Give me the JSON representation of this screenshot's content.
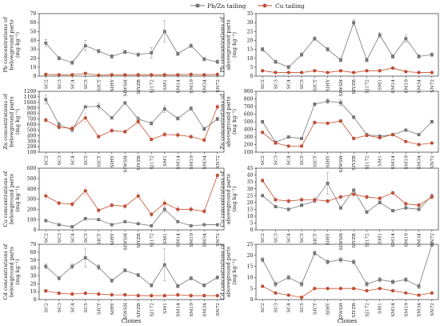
{
  "legend": {
    "series_a": "Pb/Zn tailing",
    "series_b": "Cu tailing",
    "series_a_color": "#7a7a7a",
    "series_b_color": "#c9502f",
    "error_a_color": "#9a9a9a",
    "error_b_color": "#f0b8d6"
  },
  "x_axis_title": "Clones",
  "chart_data": [
    {
      "type": "line",
      "ylabel_lines": [
        "Pb concentrations of",
        "belowground parts",
        "(mg kg⁻¹)"
      ],
      "ylim": [
        0,
        70
      ],
      "yticks": [
        0,
        10,
        20,
        30,
        40,
        50,
        60,
        70
      ],
      "categories": [
        "SC2",
        "SC3",
        "SC4",
        "SC5",
        "SICT",
        "SIHY",
        "SIWSH",
        "SIYZB",
        "SJ172",
        "SM1",
        "SM14",
        "SM19",
        "SM34",
        "SN72"
      ],
      "series": [
        {
          "name": "Pb/Zn tailing",
          "values": [
            37,
            20,
            15,
            34,
            28,
            22,
            27,
            24,
            26,
            50,
            25,
            34,
            19,
            16
          ],
          "errors": [
            4,
            2,
            2,
            6,
            2,
            2,
            2,
            2,
            6,
            12,
            2,
            2,
            2,
            2
          ]
        },
        {
          "name": "Cu tailing",
          "values": [
            2,
            1.5,
            1.5,
            3,
            1,
            1.5,
            1.5,
            1.5,
            1.5,
            1.5,
            1.5,
            2,
            1.5,
            2
          ],
          "errors": [
            0.5,
            0.5,
            0.5,
            1,
            0.5,
            0.5,
            0.5,
            0.5,
            0.5,
            0.5,
            0.5,
            0.5,
            0.5,
            0.5
          ]
        }
      ]
    },
    {
      "type": "line",
      "ylabel_lines": [
        "Pb concentrations of",
        "aboveground parts",
        "(mg kg⁻¹)"
      ],
      "ylim": [
        0,
        35
      ],
      "yticks": [
        0,
        5,
        10,
        15,
        20,
        25,
        30,
        35
      ],
      "categories": [
        "SC2",
        "SC3",
        "SC4",
        "SC5",
        "SICT",
        "SIHY",
        "SIWSH",
        "SIYZB",
        "SJ172",
        "SM1",
        "SM14",
        "SM19",
        "SM34",
        "SN72"
      ],
      "series": [
        {
          "name": "Pb/Zn tailing",
          "values": [
            15,
            8,
            5,
            12,
            21,
            15,
            9,
            30,
            9,
            23,
            11,
            21,
            11,
            12
          ],
          "errors": [
            1,
            1,
            1,
            1,
            1,
            1,
            1,
            1.5,
            1,
            1.5,
            1,
            2,
            1,
            1
          ]
        },
        {
          "name": "Cu tailing",
          "values": [
            3,
            2,
            2,
            2,
            3,
            2,
            3,
            2,
            3,
            3,
            4.5,
            2.5,
            2,
            2
          ],
          "errors": [
            0.5,
            0.5,
            0.5,
            0.5,
            0.5,
            0.5,
            0.5,
            0.5,
            0.5,
            0.5,
            0.5,
            0.5,
            0.5,
            0.5
          ]
        }
      ]
    },
    {
      "type": "line",
      "ylabel_lines": [
        "Zn concentrations of",
        "belowground parts",
        "(mg kg⁻¹)"
      ],
      "ylim": [
        100,
        1200
      ],
      "yticks": [
        100,
        200,
        300,
        400,
        500,
        600,
        700,
        800,
        900,
        1000,
        1100,
        1200
      ],
      "categories": [
        "SC2",
        "SC3",
        "SC4",
        "SC5",
        "SICT",
        "SIHY",
        "SIWSH",
        "SIYZB",
        "SJ172",
        "SM1",
        "SM14",
        "SM19",
        "SM34",
        "SN72"
      ],
      "series": [
        {
          "name": "Pb/Zn tailing",
          "values": [
            1050,
            600,
            500,
            920,
            930,
            720,
            990,
            700,
            620,
            880,
            710,
            890,
            520,
            700
          ],
          "errors": [
            80,
            40,
            30,
            20,
            60,
            20,
            20,
            40,
            30,
            60,
            30,
            30,
            30,
            30
          ]
        },
        {
          "name": "Cu tailing",
          "values": [
            680,
            550,
            530,
            720,
            380,
            490,
            470,
            650,
            330,
            420,
            410,
            380,
            320,
            920
          ],
          "errors": [
            40,
            30,
            40,
            80,
            40,
            40,
            30,
            50,
            30,
            40,
            40,
            30,
            30,
            40
          ]
        }
      ]
    },
    {
      "type": "line",
      "ylabel_lines": [
        "Zn concentrations of",
        "aboveground parts",
        "(mg kg⁻¹)"
      ],
      "ylim": [
        100,
        900
      ],
      "yticks": [
        100,
        200,
        300,
        400,
        500,
        600,
        700,
        800,
        900
      ],
      "categories": [
        "SC2",
        "SC3",
        "SC4",
        "SC5",
        "SICT",
        "SIHY",
        "SIWSH",
        "SIYZB",
        "SJ172",
        "SM1",
        "SM14",
        "SM19",
        "SM34",
        "SN72"
      ],
      "series": [
        {
          "name": "Pb/Zn tailing",
          "values": [
            500,
            230,
            300,
            280,
            730,
            770,
            750,
            560,
            330,
            310,
            330,
            390,
            330,
            500
          ],
          "errors": [
            20,
            15,
            15,
            15,
            20,
            30,
            40,
            20,
            15,
            15,
            15,
            15,
            15,
            20
          ]
        },
        {
          "name": "Cu tailing",
          "values": [
            360,
            220,
            180,
            180,
            490,
            480,
            510,
            280,
            320,
            290,
            330,
            240,
            200,
            220
          ],
          "errors": [
            20,
            15,
            15,
            15,
            20,
            20,
            20,
            20,
            15,
            15,
            15,
            15,
            15,
            15
          ]
        }
      ]
    },
    {
      "type": "line",
      "ylabel_lines": [
        "Cu concentrations of",
        "belowground parts",
        "(mg kg⁻¹)"
      ],
      "ylim": [
        0,
        600
      ],
      "yticks": [
        0,
        100,
        200,
        300,
        400,
        500,
        600
      ],
      "categories": [
        "SC2",
        "SC3",
        "SC4",
        "SC5",
        "SICT",
        "SIHY",
        "SIWSH",
        "SIYZB",
        "SJ172",
        "SM1",
        "SM14",
        "SM19",
        "SM34",
        "SN72"
      ],
      "series": [
        {
          "name": "Pb/Zn tailing",
          "values": [
            90,
            50,
            30,
            110,
            100,
            50,
            80,
            60,
            40,
            200,
            80,
            40,
            50,
            50
          ],
          "errors": [
            10,
            5,
            5,
            10,
            10,
            5,
            8,
            5,
            5,
            30,
            8,
            5,
            5,
            5
          ]
        },
        {
          "name": "Cu tailing",
          "values": [
            330,
            260,
            250,
            380,
            190,
            240,
            230,
            330,
            150,
            260,
            200,
            200,
            180,
            530
          ],
          "errors": [
            30,
            20,
            20,
            40,
            20,
            20,
            20,
            30,
            20,
            30,
            30,
            20,
            20,
            20
          ]
        }
      ]
    },
    {
      "type": "line",
      "ylabel_lines": [
        "Cu concentrations of",
        "aboveground parts",
        "(mg kg⁻¹)"
      ],
      "ylim": [
        0,
        45
      ],
      "yticks": [
        0,
        5,
        10,
        15,
        20,
        25,
        30,
        35,
        40,
        45
      ],
      "categories": [
        "SC2",
        "SC3",
        "SC4",
        "SC5",
        "SICT",
        "SIHY",
        "SIWSH",
        "SIYZB",
        "SJ172",
        "SM1",
        "SM14",
        "SM19",
        "SM34",
        "SN72"
      ],
      "series": [
        {
          "name": "Pb/Zn tailing",
          "values": [
            25,
            17,
            15,
            18,
            21,
            34,
            16,
            29,
            13,
            20,
            14,
            16,
            15,
            25
          ],
          "errors": [
            1,
            1,
            1,
            1,
            1,
            8,
            1,
            1,
            1,
            1,
            1,
            1,
            1,
            1
          ]
        },
        {
          "name": "Cu tailing",
          "values": [
            36,
            22,
            21,
            22,
            22,
            21,
            24,
            26,
            24,
            23,
            27,
            19,
            18,
            24
          ],
          "errors": [
            1.5,
            1.5,
            1.5,
            1.5,
            1.5,
            1.5,
            1.5,
            1.5,
            1.5,
            1.5,
            1.5,
            1.5,
            1.5,
            1.5
          ]
        }
      ]
    },
    {
      "type": "line",
      "ylabel_lines": [
        "Cd concentrations of",
        "belowground parts",
        "(mg kg⁻¹)"
      ],
      "ylim": [
        0,
        70
      ],
      "yticks": [
        0,
        10,
        20,
        30,
        40,
        50,
        60,
        70
      ],
      "categories": [
        "SC2",
        "SC3",
        "SC4",
        "SC5",
        "SICT",
        "SIHY",
        "SIWSH",
        "SIYZB",
        "SJ172",
        "SM1",
        "SM14",
        "SM19",
        "SM34",
        "SN72"
      ],
      "series": [
        {
          "name": "Pb/Zn tailing",
          "values": [
            42,
            27,
            42,
            53,
            41,
            24,
            37,
            31,
            18,
            44,
            17,
            27,
            18,
            28
          ],
          "errors": [
            3,
            2,
            3,
            12,
            3,
            2,
            2,
            2,
            2,
            20,
            2,
            2,
            2,
            2
          ]
        },
        {
          "name": "Cu tailing",
          "values": [
            11,
            8,
            7,
            8,
            7,
            6,
            6,
            5,
            5,
            5,
            6,
            5,
            5,
            5
          ],
          "errors": [
            2,
            2,
            2,
            2,
            2,
            2,
            2,
            2,
            2,
            2,
            2,
            2,
            2,
            2
          ]
        }
      ]
    },
    {
      "type": "line",
      "ylabel_lines": [
        "Cd concentrations of",
        "aboveground parts",
        "(mg kg⁻¹)"
      ],
      "ylim": [
        0,
        25
      ],
      "yticks": [
        0,
        5,
        10,
        15,
        20,
        25
      ],
      "categories": [
        "SC2",
        "SC3",
        "SC4",
        "SC5",
        "SICT",
        "SIHY",
        "SIWSH",
        "SIYZB",
        "SJ172",
        "SM1",
        "SM14",
        "SM19",
        "SM34",
        "SN72"
      ],
      "series": [
        {
          "name": "Pb/Zn tailing",
          "values": [
            18,
            7,
            10,
            7,
            21,
            17,
            18,
            17,
            7,
            9,
            8,
            9,
            6,
            25
          ],
          "errors": [
            1,
            1,
            1,
            1,
            1,
            1,
            1,
            1,
            1,
            1,
            1,
            1,
            1,
            1
          ]
        },
        {
          "name": "Cu tailing",
          "values": [
            6,
            3,
            2,
            1,
            5,
            5,
            5,
            5,
            4,
            5,
            4,
            3,
            2,
            3
          ],
          "errors": [
            0.5,
            0.5,
            0.5,
            0.5,
            0.5,
            0.5,
            0.5,
            0.5,
            0.5,
            0.5,
            0.5,
            0.5,
            0.5,
            0.5
          ]
        }
      ]
    }
  ]
}
